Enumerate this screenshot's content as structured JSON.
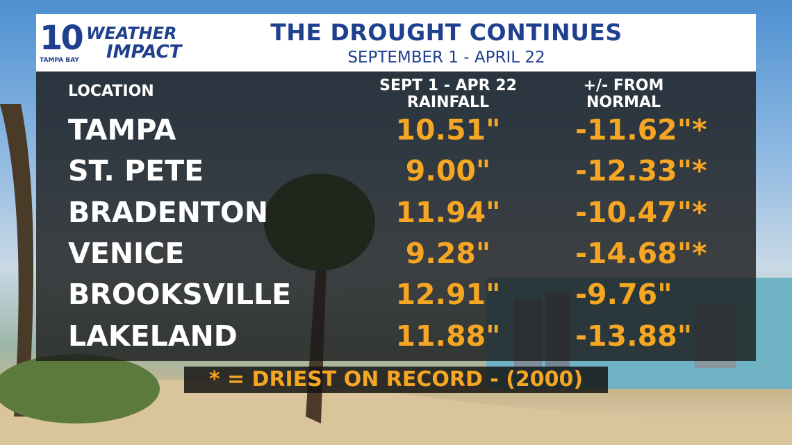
{
  "logo": {
    "number": "10",
    "line1": "WEATHER",
    "line2": "IMPACT",
    "station": "TAMPA BAY"
  },
  "header": {
    "title": "THE DROUGHT CONTINUES",
    "subtitle": "SEPTEMBER 1 - APRIL 22"
  },
  "table": {
    "columns": [
      [
        "LOCATION"
      ],
      [
        "SEPT 1 - APR 22",
        "RAINFALL"
      ],
      [
        "+/- FROM",
        "NORMAL"
      ]
    ],
    "rows": [
      [
        "TAMPA",
        "10.51\"",
        "-11.62\"*"
      ],
      [
        "ST. PETE",
        "9.00\"",
        "-12.33\"*"
      ],
      [
        "BRADENTON",
        "11.94\"",
        "-10.47\"*"
      ],
      [
        "VENICE",
        "9.28\"",
        "-14.68\"*"
      ],
      [
        "BROOKSVILLE",
        "12.91\"",
        "-9.76\""
      ],
      [
        "LAKELAND",
        "11.88\"",
        "-13.88\""
      ]
    ]
  },
  "footnote": "* = DRIEST ON RECORD - (2000)"
}
